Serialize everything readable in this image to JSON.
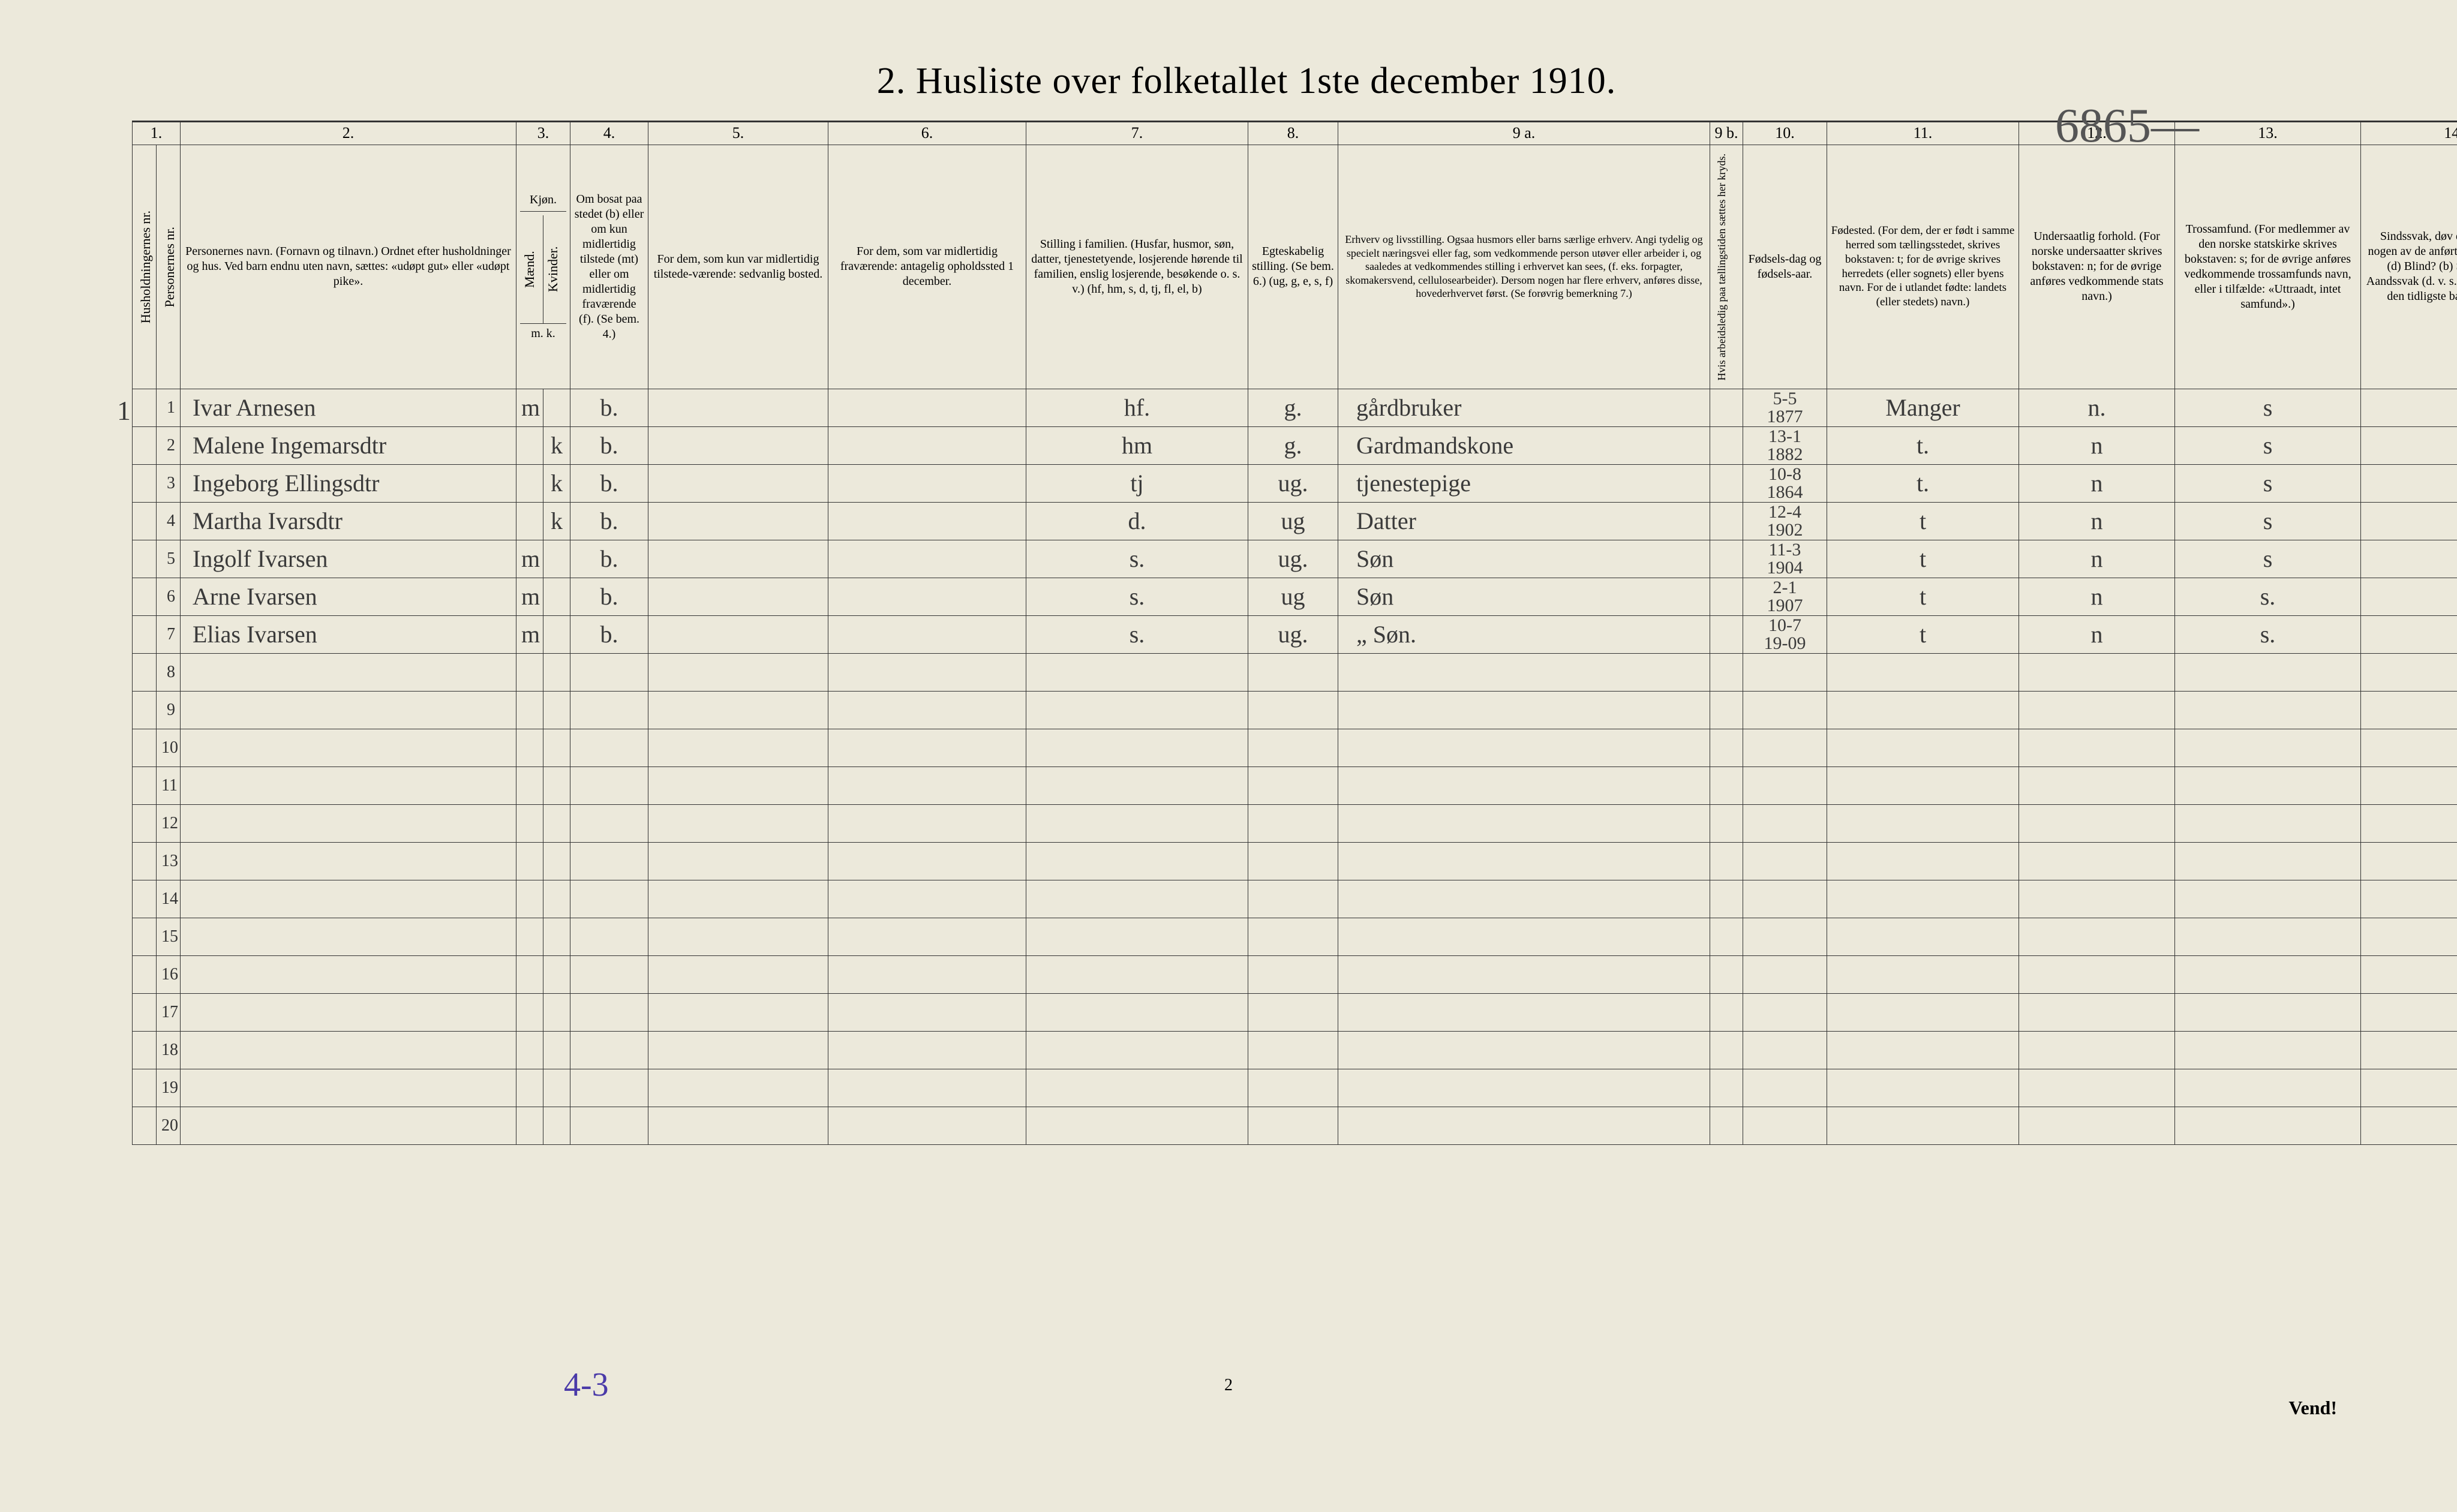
{
  "handwritten_top": "6865—",
  "title": "2.  Husliste over folketallet 1ste december 1910.",
  "col_numbers": [
    "1.",
    "2.",
    "3.",
    "4.",
    "5.",
    "6.",
    "7.",
    "8.",
    "9 a.",
    "9 b.",
    "10.",
    "11.",
    "12.",
    "13.",
    "14."
  ],
  "headers": {
    "hh": "Husholdningernes nr.",
    "pn": "Personernes nr.",
    "name": "Personernes navn.\n(Fornavn og tilnavn.)\nOrdnet efter husholdninger og hus.\nVed barn endnu uten navn, sættes: «udøpt gut» eller «udøpt pike».",
    "kjon": "Kjøn.",
    "m": "Mænd.",
    "k": "Kvinder.",
    "bosat": "Om bosat paa stedet (b) eller om kun midlertidig tilstede (mt) eller om midlertidig fraværende (f). (Se bem. 4.)",
    "c5": "For dem, som kun var midlertidig tilstede-værende:\nsedvanlig bosted.",
    "c6": "For dem, som var midlertidig fraværende:\nantagelig opholdssted 1 december.",
    "c7": "Stilling i familien.\n(Husfar, husmor, søn, datter, tjenestetyende, losjerende hørende til familien, enslig losjerende, besøkende o. s. v.)\n(hf, hm, s, d, tj, fl, el, b)",
    "c8": "Egteskabelig stilling.\n(Se bem. 6.)\n(ug, g, e, s, f)",
    "c9a": "Erhverv og livsstilling.\nOgsaa husmors eller barns særlige erhverv. Angi tydelig og specielt næringsvei eller fag, som vedkommende person utøver eller arbeider i, og saaledes at vedkommendes stilling i erhvervet kan sees, (f. eks. forpagter, skomakersvend, cellulosearbeider). Dersom nogen har flere erhverv, anføres disse, hovederhvervet først.\n(Se forøvrig bemerkning 7.)",
    "c9b": "Hvis arbeidsledig paa tællingstiden sættes her kryds.",
    "c10": "Fødsels-dag og fødsels-aar.",
    "c11": "Fødested.\n(For dem, der er født i samme herred som tællingsstedet, skrives bokstaven: t; for de øvrige skrives herredets (eller sognets) eller byens navn. For de i utlandet fødte: landets (eller stedets) navn.)",
    "c12": "Undersaatlig forhold.\n(For norske undersaatter skrives bokstaven: n; for de øvrige anføres vedkommende stats navn.)",
    "c13": "Trossamfund.\n(For medlemmer av den norske statskirke skrives bokstaven: s; for de øvrige anføres vedkommende trossamfunds navn, eller i tilfælde: «Uttraadt, intet samfund».)",
    "c14": "Sindssvak, døv eller blind.\nVar nogen av de anførte personer:\nDøv? (d)\nBlind? (b)\nSindssyk? (s)\nAandssvak (d. v. s. fra fødselen eller den tidligste barndom)? (a.)",
    "mk": "m.  k."
  },
  "rows": [
    {
      "n": "1",
      "name": "Ivar Arnesen",
      "m": "m",
      "k": "",
      "b": "b.",
      "c5": "",
      "c6": "",
      "fam": "hf.",
      "eg": "g.",
      "occ": "gårdbruker",
      "bd": "5-5\n1877",
      "bp": "Manger",
      "us": "n.",
      "ts": "s",
      "c14": ""
    },
    {
      "n": "2",
      "name": "Malene Ingemarsdtr",
      "m": "",
      "k": "k",
      "b": "b.",
      "c5": "",
      "c6": "",
      "fam": "hm",
      "eg": "g.",
      "occ": "Gardmandskone",
      "bd": "13-1\n1882",
      "bp": "t.",
      "us": "n",
      "ts": "s",
      "c14": ""
    },
    {
      "n": "3",
      "name": "Ingeborg Ellingsdtr",
      "m": "",
      "k": "k",
      "b": "b.",
      "c5": "",
      "c6": "",
      "fam": "tj",
      "eg": "ug.",
      "occ": "tjenestepige",
      "bd": "10-8\n1864",
      "bp": "t.",
      "us": "n",
      "ts": "s",
      "c14": ""
    },
    {
      "n": "4",
      "name": "Martha Ivarsdtr",
      "m": "",
      "k": "k",
      "b": "b.",
      "c5": "",
      "c6": "",
      "fam": "d.",
      "eg": "ug",
      "occ": "Datter",
      "bd": "12-4\n1902",
      "bp": "t",
      "us": "n",
      "ts": "s",
      "c14": ""
    },
    {
      "n": "5",
      "name": "Ingolf Ivarsen",
      "m": "m",
      "k": "",
      "b": "b.",
      "c5": "",
      "c6": "",
      "fam": "s.",
      "eg": "ug.",
      "occ": "Søn",
      "bd": "11-3\n1904",
      "bp": "t",
      "us": "n",
      "ts": "s",
      "c14": ""
    },
    {
      "n": "6",
      "name": "Arne Ivarsen",
      "m": "m",
      "k": "",
      "b": "b.",
      "c5": "",
      "c6": "",
      "fam": "s.",
      "eg": "ug",
      "occ": "Søn",
      "bd": "2-1\n1907",
      "bp": "t",
      "us": "n",
      "ts": "s.",
      "c14": ""
    },
    {
      "n": "7",
      "name": "Elias Ivarsen",
      "m": "m",
      "k": "",
      "b": "b.",
      "c5": "",
      "c6": "",
      "fam": "s.",
      "eg": "ug.",
      "occ": "„  Søn.",
      "bd": "10-7\n19-09",
      "bp": "t",
      "us": "n",
      "ts": "s.",
      "c14": ""
    },
    {
      "n": "8"
    },
    {
      "n": "9"
    },
    {
      "n": "10"
    },
    {
      "n": "11"
    },
    {
      "n": "12"
    },
    {
      "n": "13"
    },
    {
      "n": "14"
    },
    {
      "n": "15"
    },
    {
      "n": "16"
    },
    {
      "n": "17"
    },
    {
      "n": "18"
    },
    {
      "n": "19"
    },
    {
      "n": "20"
    }
  ],
  "bottom_note": "4-3",
  "page_footer_num": "2",
  "vend": "Vend!",
  "hh_mark": "1"
}
